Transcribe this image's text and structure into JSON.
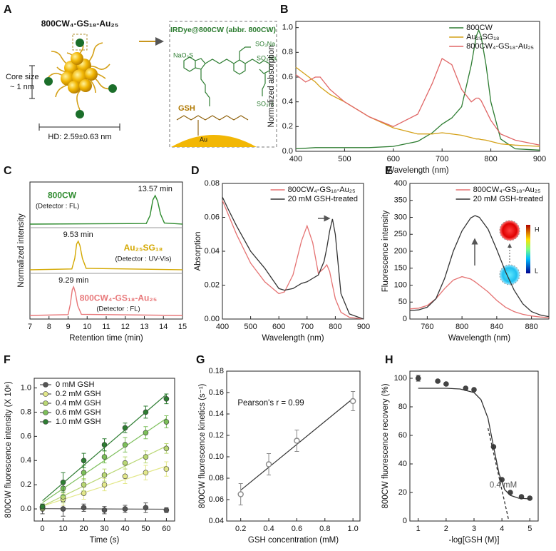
{
  "diagram": {
    "panel_label": "A",
    "cluster_label": "800CW₄-GS₁₈-Au₂₅",
    "core_label": "Core size",
    "core_size": "~ 1 nm",
    "hd_label": "HD: 2.59±0.63 nm",
    "dye_title": "IRDye@800CW (abbr. 800CW)",
    "gsh_label": "GSH",
    "au_label": "Au",
    "group_1": "NaO₃S",
    "group_2": "SO₃Na",
    "group_3": "SO₃Na",
    "group_4": "SO₃H"
  },
  "chart_data": [
    {
      "type": "line",
      "panel_label": "B",
      "xlabel": "Wavelength (nm)",
      "ylabel": "Normalized absorption",
      "xlim": [
        400,
        900
      ],
      "ylim": [
        0,
        1.05
      ],
      "xticks": [
        400,
        500,
        600,
        700,
        800,
        900
      ],
      "yticks": [
        {
          "value": 0,
          "label": "0.0"
        },
        0.2,
        0.4,
        0.6,
        0.8,
        {
          "value": 1,
          "label": "1.0"
        }
      ],
      "legend": "upper right",
      "x": [
        400,
        420,
        440,
        450,
        470,
        500,
        550,
        600,
        650,
        680,
        700,
        720,
        740,
        760,
        770,
        775,
        780,
        790,
        800,
        820,
        850,
        900
      ],
      "series": [
        {
          "name": "800CW",
          "color": "#2e7d32",
          "values": [
            0.02,
            0.025,
            0.03,
            0.03,
            0.03,
            0.03,
            0.03,
            0.04,
            0.08,
            0.15,
            0.22,
            0.27,
            0.36,
            0.7,
            0.93,
            0.98,
            0.93,
            0.7,
            0.4,
            0.1,
            0.02,
            0.01
          ]
        },
        {
          "name": "Au₂₅SG₁₈",
          "color": "#d4a017",
          "values": [
            0.68,
            0.62,
            0.56,
            0.52,
            0.46,
            0.4,
            0.28,
            0.19,
            0.14,
            0.14,
            0.15,
            0.14,
            0.13,
            0.11,
            0.1,
            0.1,
            0.095,
            0.09,
            0.08,
            0.06,
            0.05,
            0.04
          ]
        },
        {
          "name": "800CW₄-GS₁₈-Au₂₅",
          "color": "#e06666",
          "values": [
            0.62,
            0.56,
            0.6,
            0.6,
            0.5,
            0.4,
            0.28,
            0.2,
            0.3,
            0.55,
            0.75,
            0.7,
            0.5,
            0.4,
            0.43,
            0.43,
            0.41,
            0.33,
            0.25,
            0.14,
            0.09,
            0.05
          ]
        }
      ]
    },
    {
      "type": "ridgeline",
      "panel_label": "C",
      "xlabel": "Retention time (min)",
      "ylabel": "Normalized intensity",
      "xlim": [
        7,
        15
      ],
      "xticks": [
        7,
        8,
        9,
        10,
        11,
        12,
        13,
        14,
        15
      ],
      "series": [
        {
          "name": "800CW",
          "detector": "(Detector : FL)",
          "peak_label": "13.57 min",
          "color": "#2e8b2e",
          "x": [
            7,
            13.1,
            13.3,
            13.45,
            13.57,
            13.7,
            13.85,
            14.05,
            15
          ],
          "values": [
            0,
            0.02,
            0.3,
            0.85,
            1,
            0.8,
            0.35,
            0.04,
            0
          ]
        },
        {
          "name": "Au₂₅SG₁₈",
          "detector": "(Detector : UV-Vis)",
          "peak_label": "9.53 min",
          "color": "#d4a800",
          "x": [
            7,
            9.2,
            9.35,
            9.45,
            9.53,
            9.62,
            9.75,
            9.95,
            15
          ],
          "values": [
            0,
            0.03,
            0.4,
            0.9,
            1,
            0.85,
            0.4,
            0.05,
            0
          ]
        },
        {
          "name": "800CW₄-GS₁₈-Au₂₅",
          "detector": "(Detector : FL)",
          "peak_label": "9.29 min",
          "color": "#e8787a",
          "x": [
            7,
            9.0,
            9.12,
            9.22,
            9.29,
            9.38,
            9.5,
            9.7,
            15
          ],
          "values": [
            0,
            0.03,
            0.4,
            0.9,
            1,
            0.8,
            0.35,
            0.04,
            0
          ]
        }
      ]
    },
    {
      "type": "line",
      "panel_label": "D",
      "xlabel": "Wavelength (nm)",
      "ylabel": "Absorption",
      "xlim": [
        400,
        900
      ],
      "ylim": [
        0,
        0.08
      ],
      "xticks": [
        400,
        500,
        600,
        700,
        800,
        900
      ],
      "yticks": [
        {
          "value": 0,
          "label": "0.00"
        },
        0.02,
        0.04,
        0.06,
        0.08
      ],
      "legend": "upper right",
      "x": [
        400,
        420,
        450,
        500,
        550,
        600,
        620,
        650,
        680,
        700,
        720,
        740,
        760,
        770,
        780,
        790,
        800,
        820,
        850,
        900
      ],
      "series": [
        {
          "name": "800CW₄-GS₁₈-Au₂₅",
          "color": "#e57373",
          "values": [
            0.07,
            0.062,
            0.05,
            0.033,
            0.022,
            0.015,
            0.016,
            0.026,
            0.046,
            0.055,
            0.045,
            0.027,
            0.03,
            0.032,
            0.028,
            0.02,
            0.012,
            0.004,
            0.001,
            0
          ]
        },
        {
          "name": "20 mM GSH-treated",
          "color": "#333333",
          "values": [
            0.072,
            0.065,
            0.055,
            0.04,
            0.03,
            0.018,
            0.017,
            0.018,
            0.021,
            0.022,
            0.024,
            0.026,
            0.034,
            0.042,
            0.052,
            0.059,
            0.05,
            0.015,
            0.003,
            0
          ]
        }
      ]
    },
    {
      "type": "line",
      "panel_label": "E",
      "xlabel": "Wavelength (nm)",
      "ylabel": "Fluorescence intensity",
      "xlim": [
        740,
        900
      ],
      "ylim": [
        0,
        400
      ],
      "xticks": [
        760,
        800,
        840,
        880
      ],
      "yticks": [
        0,
        50,
        100,
        150,
        200,
        250,
        300,
        350,
        400
      ],
      "legend": "upper right",
      "colorbar_labels": [
        "H",
        "L"
      ],
      "x": [
        740,
        750,
        760,
        770,
        780,
        790,
        800,
        810,
        815,
        820,
        830,
        840,
        850,
        860,
        870,
        880,
        890,
        900
      ],
      "series": [
        {
          "name": "800CW₄-GS₁₈-Au₂₅",
          "color": "#e57373",
          "values": [
            30,
            32,
            40,
            60,
            90,
            115,
            125,
            118,
            110,
            100,
            80,
            55,
            35,
            22,
            14,
            9,
            6,
            4
          ]
        },
        {
          "name": "20 mM GSH-treated",
          "color": "#333333",
          "values": [
            25,
            27,
            35,
            60,
            120,
            200,
            260,
            298,
            305,
            300,
            265,
            205,
            140,
            85,
            45,
            22,
            12,
            7
          ]
        }
      ]
    },
    {
      "type": "scatter",
      "panel_label": "F",
      "xlabel": "Time (s)",
      "ylabel": "800CW fluorescence intensity (X 10⁶)",
      "xlim": [
        -4,
        64
      ],
      "ylim": [
        -0.1,
        1.08
      ],
      "xticks": [
        0,
        10,
        20,
        30,
        40,
        50,
        60
      ],
      "yticks": [
        {
          "value": 0,
          "label": "0.0"
        },
        0.2,
        0.4,
        0.6,
        0.8,
        {
          "value": 1,
          "label": "1.0"
        }
      ],
      "legend": "upper left",
      "fit": "linear",
      "x": [
        0,
        10,
        20,
        30,
        40,
        50,
        60
      ],
      "series": [
        {
          "name": "0 mM GSH",
          "color": "#555555",
          "values": [
            0,
            0,
            0.01,
            -0.01,
            0,
            0.01,
            -0.01
          ],
          "errors": [
            0.04,
            0.06,
            0.03,
            0.03,
            0.03,
            0.04,
            0.02
          ]
        },
        {
          "name": "0.2 mM GSH",
          "color": "#e3e88a",
          "values": [
            0.01,
            0.08,
            0.13,
            0.2,
            0.27,
            0.3,
            0.33
          ],
          "errors": [
            0.02,
            0.05,
            0.05,
            0.05,
            0.06,
            0.06,
            0.06
          ]
        },
        {
          "name": "0.4 mM GSH",
          "color": "#b9d774",
          "values": [
            0.01,
            0.1,
            0.2,
            0.28,
            0.38,
            0.43,
            0.5
          ],
          "errors": [
            0.02,
            0.05,
            0.05,
            0.05,
            0.05,
            0.05,
            0.04
          ]
        },
        {
          "name": "0.6 mM GSH",
          "color": "#7cbf5a",
          "values": [
            0.02,
            0.17,
            0.3,
            0.43,
            0.53,
            0.63,
            0.72
          ],
          "errors": [
            0.02,
            0.06,
            0.06,
            0.05,
            0.06,
            0.05,
            0.05
          ]
        },
        {
          "name": "1.0 mM GSH",
          "color": "#2e7d32",
          "values": [
            0.02,
            0.22,
            0.4,
            0.53,
            0.67,
            0.8,
            0.91
          ],
          "errors": [
            0.02,
            0.08,
            0.06,
            0.05,
            0.04,
            0.05,
            0.04
          ]
        }
      ]
    },
    {
      "type": "scatter",
      "panel_label": "G",
      "xlabel": "GSH concentration (mM)",
      "ylabel": "800CW fluorescence kinetics (s⁻¹)",
      "xlim": [
        0.1,
        1.05
      ],
      "ylim": [
        0.04,
        0.18
      ],
      "xticks": [
        0.2,
        0.4,
        0.6,
        0.8,
        {
          "value": 1,
          "label": "1.0"
        }
      ],
      "yticks": [
        0.04,
        0.06,
        0.08,
        {
          "value": 0.1,
          "label": "0.10"
        },
        0.12,
        0.14,
        0.16,
        0.18
      ],
      "fit": "linear",
      "annotations": [
        "Pearson's r = 0.99"
      ],
      "x": [
        0.2,
        0.4,
        0.6,
        1.0
      ],
      "series": [
        {
          "color": "#888888",
          "marker": "open",
          "values": [
            0.065,
            0.093,
            0.115,
            0.152
          ],
          "errors": [
            0.01,
            0.01,
            0.01,
            0.009
          ]
        }
      ]
    },
    {
      "type": "scatter",
      "panel_label": "H",
      "xlabel": "-log[GSH (M)]",
      "ylabel": "800CW fluorescence recovery (%)",
      "xlim": [
        0.7,
        5.3
      ],
      "ylim": [
        0,
        105
      ],
      "xticks": [
        1,
        2,
        3,
        4,
        5
      ],
      "yticks": [
        0,
        20,
        40,
        60,
        80,
        100
      ],
      "annotations": [
        "0.4 mM"
      ],
      "series": [
        {
          "color": "#444444",
          "x": [
            1,
            1.7,
            2,
            2.7,
            3,
            3.7,
            4,
            4.3,
            4.7,
            5
          ],
          "values": [
            100,
            98,
            96,
            93,
            92,
            52,
            29,
            20,
            17,
            16
          ],
          "errors": [
            2,
            0,
            0,
            0,
            0,
            0,
            0,
            0,
            0,
            0
          ]
        },
        {
          "color": "#333333",
          "style": "line",
          "x": [
            1,
            2,
            2.5,
            3,
            3.25,
            3.5,
            3.7,
            3.9,
            4.1,
            4.3,
            4.6,
            5
          ],
          "values": [
            93,
            93,
            92.5,
            90,
            85,
            72,
            52,
            33,
            22,
            18,
            16,
            15.5
          ]
        },
        {
          "color": "#333333",
          "style": "dashed",
          "x": [
            3.5,
            4.25
          ],
          "values": [
            65,
            0
          ]
        }
      ]
    }
  ]
}
